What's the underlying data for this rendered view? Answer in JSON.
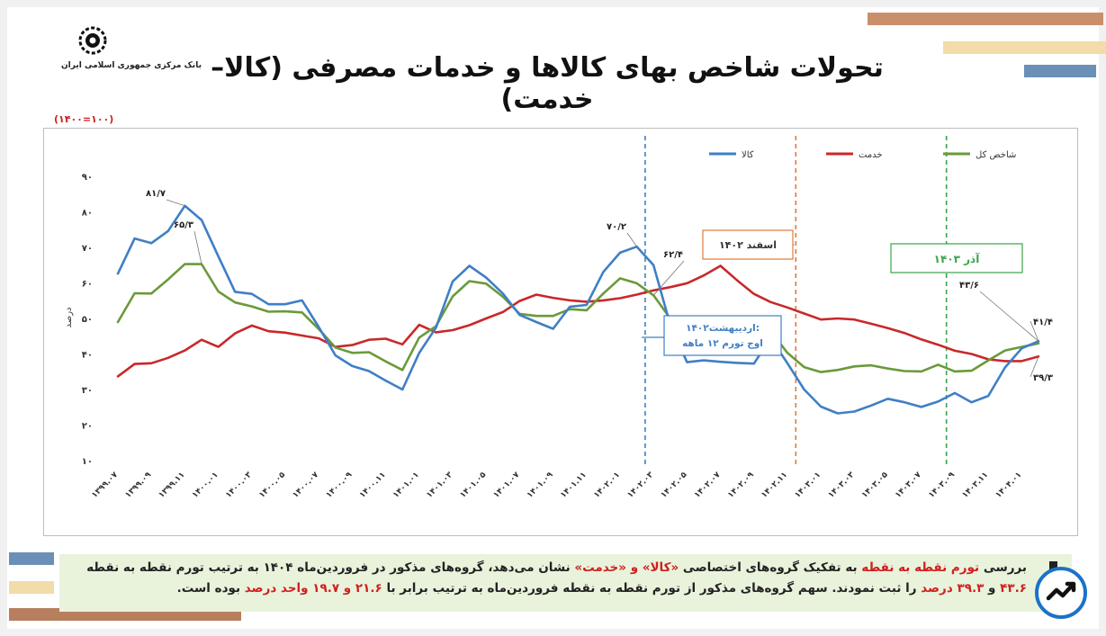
{
  "header": {
    "title": "تحولات شاخص بهای کالاها و خدمات مصرفی (کالا–خدمت)",
    "logo_caption": "بانک مرکزی جمهوری اسلامی ایران",
    "base_note": "(۱۴۰۰=۱۰۰)"
  },
  "colors": {
    "kala": "#3f7fc5",
    "khedmat": "#c9282a",
    "kol": "#6a9a3a",
    "accent_red": "#d11f1f",
    "footer_bg": "#e9f3dc"
  },
  "icons": {
    "logo": "cbi-logo-icon",
    "badge": "trend-badge-icon"
  },
  "chart_data": {
    "type": "line",
    "ylabel": "درصد",
    "ylim": [
      10,
      90
    ],
    "yticks": [
      10,
      20,
      30,
      40,
      50,
      60,
      70,
      80,
      90
    ],
    "ytick_labels": [
      "۱۰",
      "۲۰",
      "۳۰",
      "۴۰",
      "۵۰",
      "۶۰",
      "۷۰",
      "۸۰",
      "۹۰"
    ],
    "x_labels": [
      "۱۳۹۹.۰۷",
      "۱۳۹۹.۰۹",
      "۱۳۹۹.۱۱",
      "۱۴۰۰.۰۱",
      "۱۴۰۰.۰۳",
      "۱۴۰۰.۰۵",
      "۱۴۰۰.۰۷",
      "۱۴۰۰.۰۹",
      "۱۴۰۰.۱۱",
      "۱۴۰۱.۰۱",
      "۱۴۰۱.۰۳",
      "۱۴۰۱.۰۵",
      "۱۴۰۱.۰۷",
      "۱۴۰۱.۰۹",
      "۱۴۰۱.۱۱",
      "۱۴۰۲.۰۱",
      "۱۴۰۲.۰۳",
      "۱۴۰۲.۰۵",
      "۱۴۰۲.۰۷",
      "۱۴۰۲.۰۹",
      "۱۴۰۲.۱۱",
      "۱۴۰۳.۰۱",
      "۱۴۰۳.۰۳",
      "۱۴۰۳.۰۵",
      "۱۴۰۳.۰۷",
      "۱۴۰۳.۰۹",
      "۱۴۰۳.۱۱",
      "۱۴۰۴.۰۱"
    ],
    "series": [
      {
        "name": "کالا",
        "key": "kala",
        "values": [
          62.6,
          72.5,
          71.2,
          74.6,
          81.7,
          77.7,
          67.5,
          57.5,
          56.9,
          54.0,
          54.0,
          55.1,
          47.6,
          39.6,
          36.6,
          35.2,
          32.5,
          30.0,
          40.3,
          47.4,
          60.4,
          64.8,
          61.5,
          57.0,
          51.0,
          49.0,
          47.1,
          53.3,
          53.8,
          63.1,
          68.5,
          70.2,
          65.0,
          48.2,
          37.7,
          38.2,
          37.8,
          37.5,
          37.3,
          44.5,
          37.4,
          30.0,
          25.2,
          23.3,
          23.8,
          25.5,
          27.4,
          26.4,
          25.1,
          26.6,
          29.0,
          26.4,
          28.2,
          36.2,
          41.6,
          43.6
        ]
      },
      {
        "name": "خدمت",
        "key": "khedmat",
        "values": [
          33.7,
          37.2,
          37.4,
          38.9,
          41.0,
          44.0,
          42.0,
          45.8,
          48.0,
          46.4,
          46.0,
          45.2,
          44.4,
          42.0,
          42.5,
          44.0,
          44.3,
          42.7,
          48.2,
          46.1,
          46.7,
          48.1,
          50.0,
          51.8,
          54.9,
          56.7,
          55.8,
          55.1,
          54.7,
          55.1,
          55.7,
          56.7,
          57.9,
          58.8,
          59.9,
          62.1,
          64.8,
          60.7,
          56.9,
          54.6,
          53.1,
          51.4,
          49.7,
          50.0,
          49.7,
          48.5,
          47.3,
          45.9,
          44.1,
          42.6,
          40.9,
          40.0,
          38.5,
          38.0,
          38.0,
          39.3
        ]
      },
      {
        "name": "شاخص کل",
        "key": "kol",
        "values": [
          49.0,
          57.1,
          57.0,
          61.0,
          65.3,
          65.3,
          57.6,
          54.5,
          53.4,
          51.9,
          52.0,
          51.7,
          47.0,
          41.8,
          40.3,
          40.5,
          37.9,
          35.5,
          44.6,
          47.8,
          56.2,
          60.5,
          59.8,
          56.1,
          51.3,
          50.7,
          50.7,
          52.6,
          52.3,
          57.0,
          61.3,
          59.9,
          56.5,
          50.0,
          45.5,
          45.5,
          45.0,
          45.2,
          45.1,
          46.5,
          40.3,
          36.3,
          34.9,
          35.5,
          36.5,
          36.8,
          35.9,
          35.2,
          35.1,
          37.0,
          35.1,
          35.3,
          38.2,
          41.0,
          42.0,
          43.0
        ]
      }
    ],
    "legend": [
      "کالا",
      "خدمت",
      "شاخص کل"
    ],
    "legend_position": "top-right",
    "grid": false,
    "annotations": [
      {
        "text": "۸۱/۷"
      },
      {
        "text": "۶۵/۳"
      },
      {
        "text": "۷۰/۲"
      },
      {
        "text": "۶۲/۴"
      },
      {
        "text": "۴۳/۶"
      },
      {
        "text": "۴۱/۴"
      },
      {
        "text": "۳۹/۳"
      }
    ],
    "event_lines": [
      {
        "x": 31.5,
        "color": "#3f7fc5",
        "label": [
          "اردیبهشت۱۴۰۲:",
          "اوج تورم ۱۲ ماهه"
        ]
      },
      {
        "x": 40.5,
        "color": "#e07a3a",
        "label": [
          "اسفند ۱۴۰۲"
        ]
      },
      {
        "x": 49.5,
        "color": "#3aa34a",
        "label": [
          "آذر ۱۴۰۳"
        ]
      }
    ]
  },
  "footer": {
    "p1": "بررسی",
    "hl1": "تورم نقطه به نقطه",
    "p2": "به تفکیک گروه‌های اختصاصی",
    "hl2": "«کالا» و «خدمت»",
    "p3": "نشان می‌دهد، گروه‌های مذکور در فروردین‌ماه ۱۴۰۴ به ترتیب تورم نقطه به نقطه",
    "hl3": "۴۳.۶",
    "p4": "و",
    "hl4": "۳۹.۳ درصد",
    "p5": "را ثبت نمودند. سهم گروه‌های مذکور از تورم نقطه به نقطه فروردین‌ماه به ترتیب برابر با",
    "hl5": "۲۱.۶ و ۱۹.۷ واحد درصد",
    "p6": "بوده است."
  }
}
